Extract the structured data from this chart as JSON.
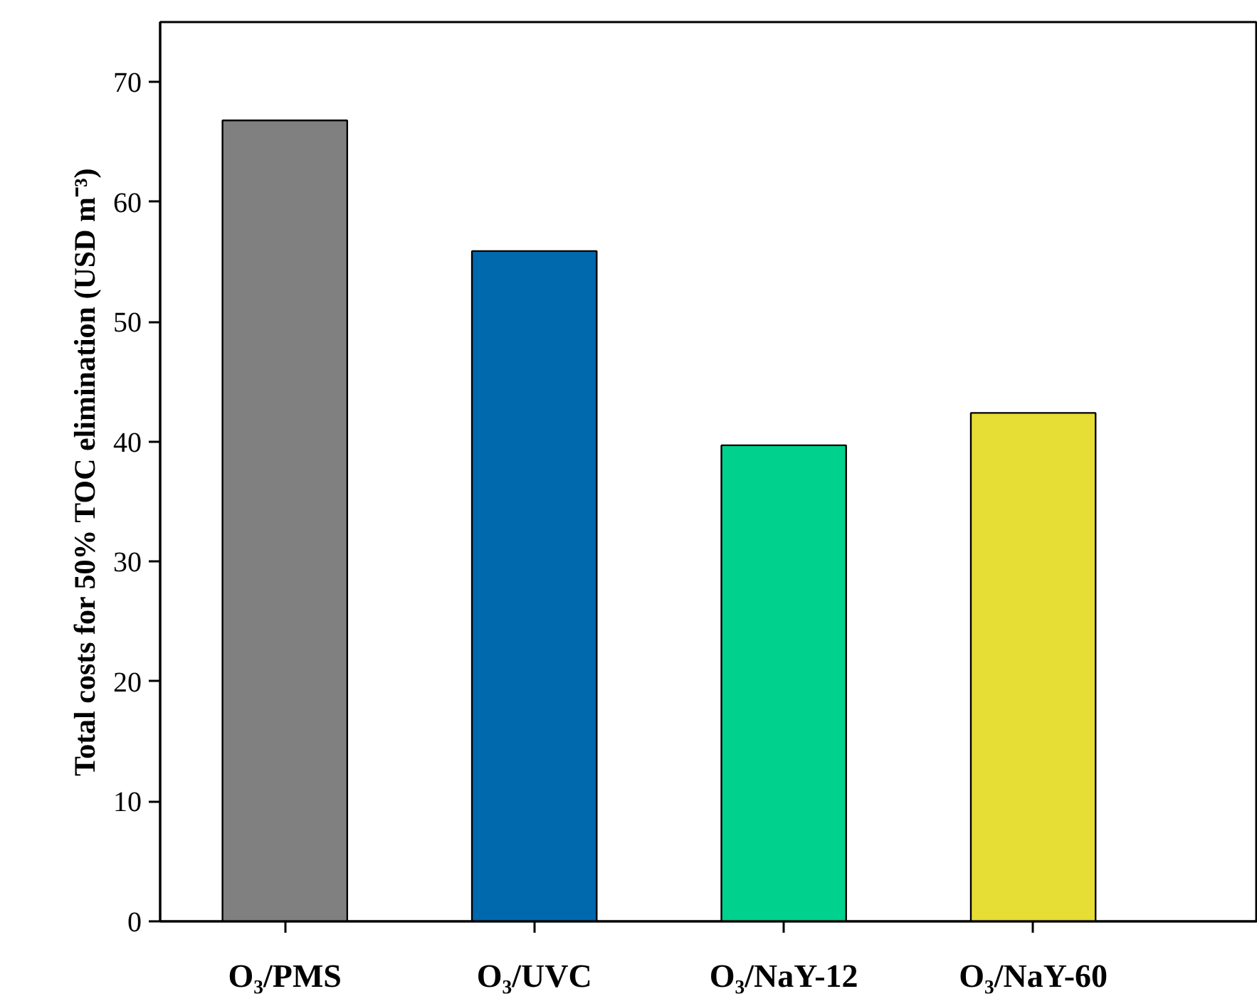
{
  "chart_data": {
    "type": "bar",
    "ylabel": "Total costs for 50% TOC elimination (USD m⁻³)",
    "categories": [
      "O₃/PMS",
      "O₃/UVC",
      "O₃/NaY-12",
      "O₃/NaY-60"
    ],
    "values": [
      66.8,
      55.9,
      39.7,
      42.4
    ],
    "colors": [
      "#808080",
      "#0068ad",
      "#00d18d",
      "#e6dd35"
    ],
    "ylim": [
      0,
      75
    ],
    "yticks": [
      0,
      10,
      20,
      30,
      40,
      50,
      60,
      70
    ],
    "grid": false
  }
}
